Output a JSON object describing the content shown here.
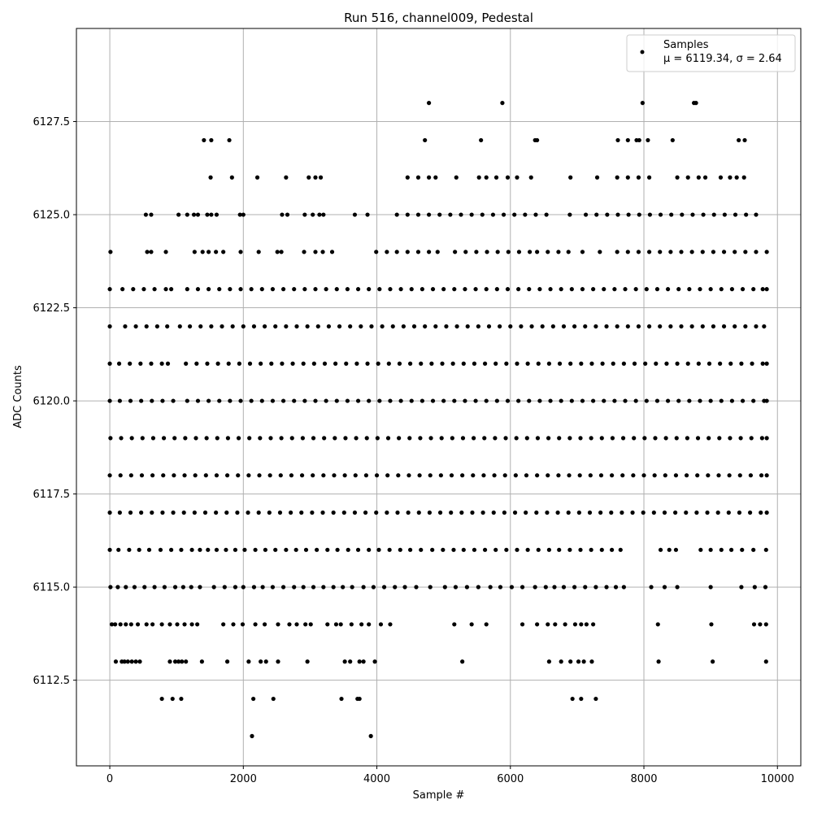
{
  "chart_data": {
    "type": "scatter",
    "title": "Run 516, channel009, Pedestal",
    "xlabel": "Sample #",
    "ylabel": "ADC Counts",
    "xlim": [
      -500,
      10350
    ],
    "ylim": [
      6110.2,
      6130.0
    ],
    "xticks": [
      0,
      2000,
      4000,
      6000,
      8000,
      10000
    ],
    "xtick_labels": [
      "0",
      "2000",
      "4000",
      "6000",
      "8000",
      "10000"
    ],
    "yticks": [
      6112.5,
      6115.0,
      6117.5,
      6120.0,
      6122.5,
      6125.0,
      6127.5
    ],
    "ytick_labels": [
      "6112.5",
      "6115.0",
      "6117.5",
      "6120.0",
      "6122.5",
      "6125.0",
      "6127.5"
    ],
    "grid": true,
    "legend_position": "top-right",
    "marker_color": "#000000",
    "series": [
      {
        "name": "Samples",
        "legend_stats": "μ = 6119.34, σ = 2.64",
        "x_range": [
          0,
          9840
        ],
        "levels": [
          {
            "y": 6111,
            "x": [
              2130,
              3910
            ]
          },
          {
            "y": 6112,
            "x": [
              780,
              940,
              1070,
              2150,
              2450,
              3470,
              3710,
              3740,
              6930,
              7060,
              7280
            ]
          },
          {
            "y": 6113,
            "x": [
              90,
              180,
              220,
              270,
              330,
              390,
              450,
              900,
              980,
              1030,
              1080,
              1140,
              1380,
              1760,
              2080,
              2260,
              2340,
              2520,
              2960,
              3520,
              3600,
              3740,
              3800,
              3970,
              5280,
              6580,
              6760,
              6900,
              7020,
              7100,
              7220,
              8220,
              9030,
              9830
            ]
          },
          {
            "y": 6114,
            "x": [
              30,
              80,
              160,
              240,
              320,
              420,
              550,
              640,
              780,
              900,
              1010,
              1120,
              1230,
              1310,
              1700,
              1850,
              1990,
              2180,
              2320,
              2520,
              2690,
              2800,
              2930,
              3010,
              3260,
              3390,
              3460,
              3620,
              3770,
              3880,
              4060,
              4200,
              5160,
              5420,
              5640,
              6180,
              6400,
              6560,
              6670,
              6820,
              6970,
              7060,
              7140,
              7240,
              8210,
              9010,
              9650,
              9740,
              9830
            ]
          },
          {
            "y": 6115,
            "x": [
              10,
              120,
              240,
              370,
              520,
              670,
              820,
              980,
              1100,
              1220,
              1350,
              1560,
              1720,
              1880,
              2000,
              2160,
              2290,
              2440,
              2600,
              2760,
              2900,
              3050,
              3200,
              3350,
              3490,
              3630,
              3800,
              3950,
              4110,
              4270,
              4420,
              4590,
              4800,
              5020,
              5180,
              5350,
              5520,
              5700,
              5850,
              6020,
              6180,
              6370,
              6530,
              6660,
              6800,
              6960,
              7120,
              7280,
              7440,
              7580,
              7700,
              8110,
              8310,
              8500,
              9000,
              9460,
              9660,
              9820
            ]
          },
          {
            "y": 6116,
            "x": [
              0,
              130,
              290,
              440,
              590,
              760,
              920,
              1070,
              1230,
              1350,
              1470,
              1600,
              1740,
              1880,
              2020,
              2180,
              2330,
              2480,
              2640,
              2790,
              2940,
              3100,
              3260,
              3410,
              3570,
              3720,
              3880,
              4030,
              4190,
              4350,
              4500,
              4660,
              4830,
              4990,
              5150,
              5300,
              5460,
              5620,
              5780,
              5940,
              6100,
              6260,
              6420,
              6580,
              6730,
              6890,
              7050,
              7210,
              7370,
              7520,
              7650,
              8250,
              8380,
              8480,
              8850,
              9000,
              9160,
              9310,
              9470,
              9640,
              9830
            ]
          },
          {
            "y": 6117,
            "x": [
              0,
              150,
              310,
              470,
              630,
              790,
              950,
              1110,
              1270,
              1430,
              1590,
              1750,
              1910,
              2070,
              2230,
              2390,
              2550,
              2710,
              2870,
              3030,
              3190,
              3350,
              3510,
              3670,
              3830,
              3990,
              4150,
              4310,
              4470,
              4630,
              4790,
              4950,
              5110,
              5270,
              5430,
              5590,
              5750,
              5910,
              6070,
              6230,
              6390,
              6550,
              6710,
              6870,
              7030,
              7190,
              7350,
              7510,
              7670,
              7830,
              7990,
              8150,
              8310,
              8470,
              8630,
              8790,
              8950,
              9110,
              9270,
              9430,
              9590,
              9750,
              9840
            ]
          },
          {
            "y": 6118,
            "x": [
              0,
              160,
              320,
              480,
              640,
              800,
              960,
              1120,
              1280,
              1440,
              1600,
              1760,
              1920,
              2080,
              2240,
              2400,
              2560,
              2720,
              2880,
              3040,
              3200,
              3360,
              3520,
              3680,
              3840,
              4000,
              4160,
              4320,
              4480,
              4640,
              4800,
              4960,
              5120,
              5280,
              5440,
              5600,
              5760,
              5920,
              6080,
              6240,
              6400,
              6560,
              6720,
              6880,
              7040,
              7200,
              7360,
              7520,
              7680,
              7840,
              8000,
              8160,
              8320,
              8480,
              8640,
              8800,
              8960,
              9120,
              9280,
              9440,
              9600,
              9760,
              9840
            ]
          },
          {
            "y": 6119,
            "x": [
              10,
              170,
              330,
              490,
              650,
              810,
              970,
              1130,
              1290,
              1450,
              1610,
              1770,
              1930,
              2090,
              2250,
              2410,
              2570,
              2730,
              2890,
              3050,
              3210,
              3370,
              3530,
              3690,
              3850,
              4010,
              4170,
              4330,
              4490,
              4650,
              4810,
              4970,
              5130,
              5290,
              5450,
              5610,
              5770,
              5930,
              6090,
              6250,
              6410,
              6570,
              6730,
              6890,
              7050,
              7210,
              7370,
              7530,
              7690,
              7850,
              8010,
              8170,
              8330,
              8490,
              8650,
              8810,
              8970,
              9130,
              9290,
              9450,
              9610,
              9770,
              9840
            ]
          },
          {
            "y": 6120,
            "x": [
              0,
              150,
              310,
              470,
              630,
              790,
              950,
              1160,
              1320,
              1480,
              1640,
              1800,
              1960,
              2120,
              2280,
              2440,
              2600,
              2760,
              2920,
              3080,
              3240,
              3400,
              3560,
              3720,
              3880,
              4040,
              4200,
              4360,
              4520,
              4680,
              4840,
              5000,
              5160,
              5320,
              5480,
              5640,
              5800,
              5960,
              6120,
              6280,
              6440,
              6600,
              6760,
              6920,
              7080,
              7240,
              7400,
              7560,
              7720,
              7880,
              8040,
              8200,
              8360,
              8520,
              8680,
              8840,
              9000,
              9160,
              9320,
              9480,
              9640,
              9800,
              9840
            ]
          },
          {
            "y": 6121,
            "x": [
              0,
              140,
              300,
              460,
              620,
              780,
              870,
              1140,
              1300,
              1460,
              1620,
              1780,
              1940,
              2100,
              2260,
              2420,
              2580,
              2740,
              2900,
              3060,
              3220,
              3380,
              3540,
              3700,
              3860,
              4020,
              4180,
              4340,
              4500,
              4660,
              4820,
              4980,
              5140,
              5300,
              5460,
              5620,
              5780,
              5940,
              6100,
              6260,
              6420,
              6580,
              6740,
              6900,
              7060,
              7220,
              7380,
              7540,
              7700,
              7860,
              8020,
              8180,
              8340,
              8500,
              8660,
              8820,
              8980,
              9140,
              9300,
              9460,
              9620,
              9780,
              9840
            ]
          },
          {
            "y": 6122,
            "x": [
              0,
              230,
              390,
              550,
              710,
              860,
              1050,
              1200,
              1360,
              1520,
              1680,
              1840,
              2000,
              2160,
              2320,
              2480,
              2640,
              2800,
              2960,
              3120,
              3280,
              3440,
              3600,
              3760,
              3920,
              4080,
              4240,
              4400,
              4560,
              4720,
              4880,
              5040,
              5200,
              5360,
              5520,
              5680,
              5840,
              6000,
              6160,
              6320,
              6480,
              6640,
              6800,
              6960,
              7120,
              7280,
              7440,
              7600,
              7760,
              7920,
              8080,
              8240,
              8400,
              8560,
              8720,
              8880,
              9040,
              9200,
              9360,
              9520,
              9680,
              9800
            ]
          },
          {
            "y": 6123,
            "x": [
              0,
              190,
              350,
              510,
              670,
              840,
              920,
              1160,
              1320,
              1480,
              1640,
              1800,
              1960,
              2120,
              2280,
              2440,
              2600,
              2760,
              2920,
              3080,
              3240,
              3400,
              3560,
              3720,
              3880,
              4040,
              4200,
              4360,
              4520,
              4680,
              4840,
              5000,
              5160,
              5320,
              5480,
              5640,
              5800,
              5960,
              6120,
              6280,
              6440,
              6600,
              6760,
              6920,
              7080,
              7240,
              7400,
              7560,
              7720,
              7880,
              8040,
              8200,
              8360,
              8520,
              8680,
              8840,
              9000,
              9160,
              9320,
              9480,
              9640,
              9780,
              9840
            ]
          },
          {
            "y": 6124,
            "x": [
              10,
              560,
              620,
              840,
              1270,
              1390,
              1480,
              1590,
              1700,
              1960,
              2230,
              2510,
              2570,
              2910,
              3080,
              3190,
              3330,
              3990,
              4150,
              4300,
              4460,
              4620,
              4780,
              4910,
              5170,
              5330,
              5490,
              5650,
              5810,
              5970,
              6130,
              6290,
              6400,
              6560,
              6720,
              6870,
              7080,
              7340,
              7600,
              7760,
              7920,
              8080,
              8240,
              8400,
              8560,
              8720,
              8880,
              9040,
              9200,
              9360,
              9520,
              9680,
              9840
            ]
          },
          {
            "y": 6125,
            "x": [
              540,
              620,
              1030,
              1160,
              1260,
              1320,
              1460,
              1520,
              1600,
              1950,
              2000,
              2580,
              2660,
              2920,
              3040,
              3140,
              3200,
              3670,
              3860,
              4300,
              4460,
              4620,
              4780,
              4940,
              5100,
              5260,
              5420,
              5580,
              5740,
              5900,
              6060,
              6220,
              6380,
              6540,
              6890,
              7130,
              7290,
              7450,
              7610,
              7770,
              7930,
              8090,
              8250,
              8410,
              8570,
              8730,
              8890,
              9050,
              9210,
              9370,
              9530,
              9680
            ]
          },
          {
            "y": 6126,
            "x": [
              1510,
              1830,
              2210,
              2640,
              2980,
              3080,
              3160,
              4460,
              4620,
              4780,
              4880,
              5190,
              5530,
              5640,
              5790,
              5960,
              6100,
              6310,
              6900,
              7300,
              7600,
              7760,
              7920,
              8080,
              8500,
              8660,
              8820,
              8920,
              9150,
              9290,
              9390,
              9500
            ]
          },
          {
            "y": 6127,
            "x": [
              1410,
              1520,
              1790,
              4720,
              5560,
              6370,
              6400,
              7610,
              7760,
              7890,
              7930,
              8060,
              8430,
              9420,
              9510
            ]
          },
          {
            "y": 6128,
            "x": [
              4780,
              5880,
              7980,
              8750,
              8780
            ]
          }
        ]
      }
    ]
  }
}
